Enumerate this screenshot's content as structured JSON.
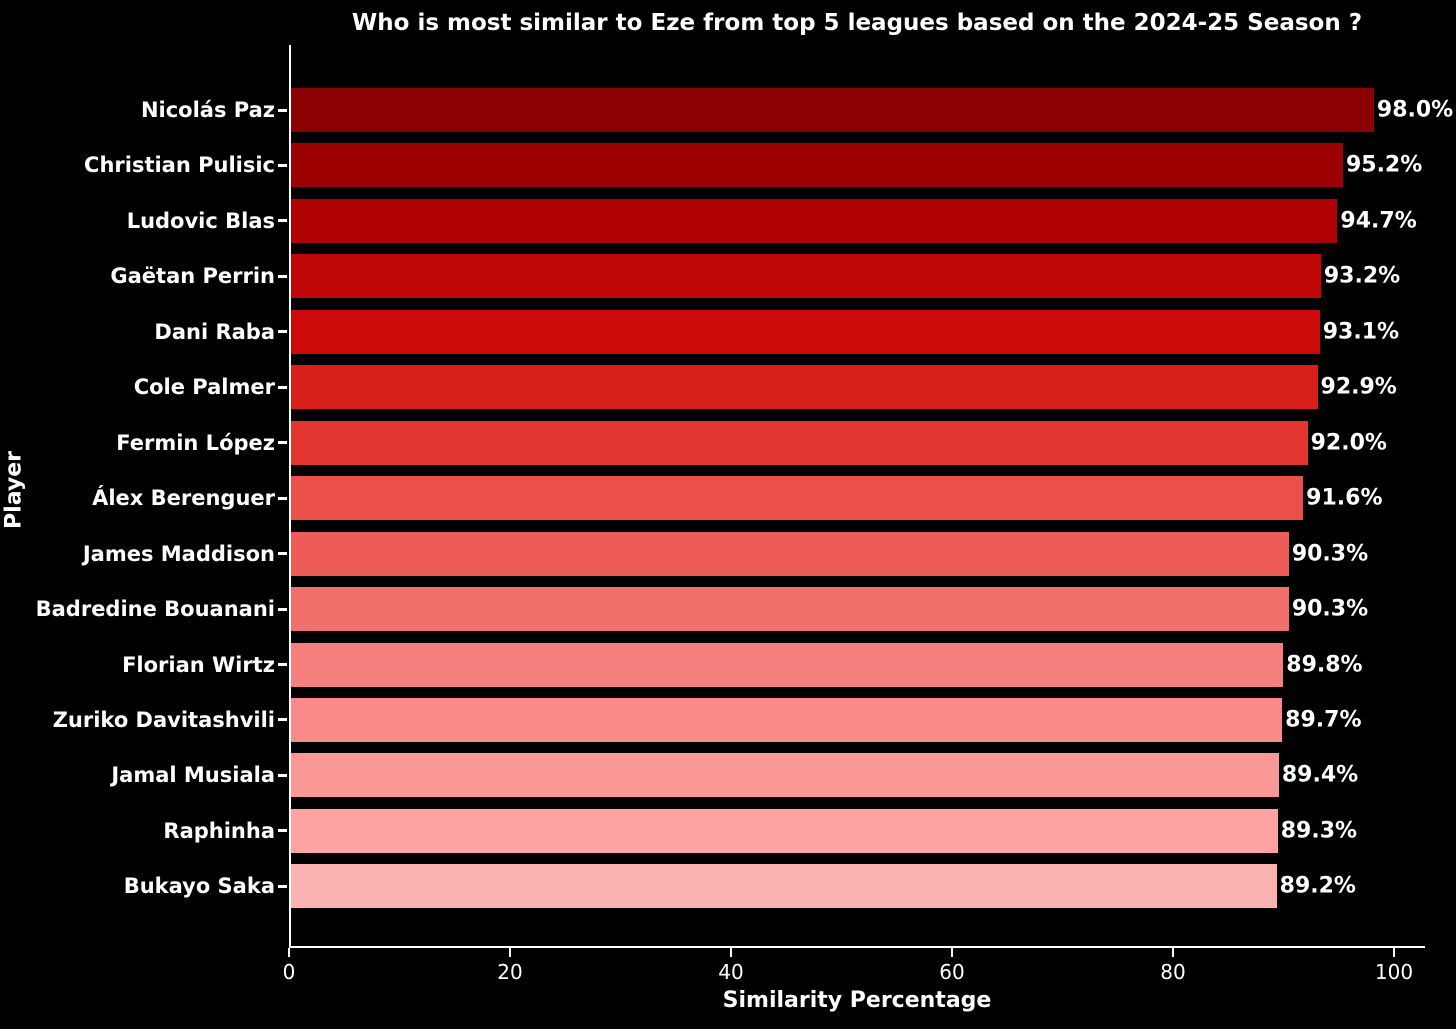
{
  "chart_data": {
    "type": "bar",
    "orientation": "horizontal",
    "title": "Who is most similar to Eze from top 5 leagues based on the 2024-25 Season ?",
    "xlabel": "Similarity Percentage",
    "ylabel": "Player",
    "categories": [
      "Nicolás Paz",
      "Christian Pulisic",
      "Ludovic Blas",
      "Gaëtan Perrin",
      "Dani Raba",
      "Cole Palmer",
      "Fermin López",
      "Álex Berenguer",
      "James Maddison",
      "Badredine Bouanani",
      "Florian Wirtz",
      "Zuriko Davitashvili",
      "Jamal Musiala",
      "Raphinha",
      "Bukayo Saka"
    ],
    "values": [
      98.0,
      95.2,
      94.7,
      93.2,
      93.1,
      92.9,
      92.0,
      91.6,
      90.3,
      90.3,
      89.8,
      89.7,
      89.4,
      89.3,
      89.2
    ],
    "value_labels": [
      "98.0%",
      "95.2%",
      "94.7%",
      "93.2%",
      "93.1%",
      "92.9%",
      "92.0%",
      "91.6%",
      "90.3%",
      "90.3%",
      "89.8%",
      "89.7%",
      "89.4%",
      "89.3%",
      "89.2%"
    ],
    "bar_colors": [
      "#8b0000",
      "#9d0000",
      "#b00202",
      "#c00606",
      "#cd0a0a",
      "#d81f1c",
      "#e1362f",
      "#ea4f4a",
      "#ee5c58",
      "#f2706c",
      "#f57f7c",
      "#f88a87",
      "#fa9895",
      "#fba4a2",
      "#fcb3b1"
    ],
    "xticks": [
      0,
      20,
      40,
      60,
      80,
      100
    ],
    "xlim": [
      0,
      102.8
    ],
    "grid": false,
    "legend": null,
    "background_color": "#000000",
    "text_color": "#ffffff"
  }
}
